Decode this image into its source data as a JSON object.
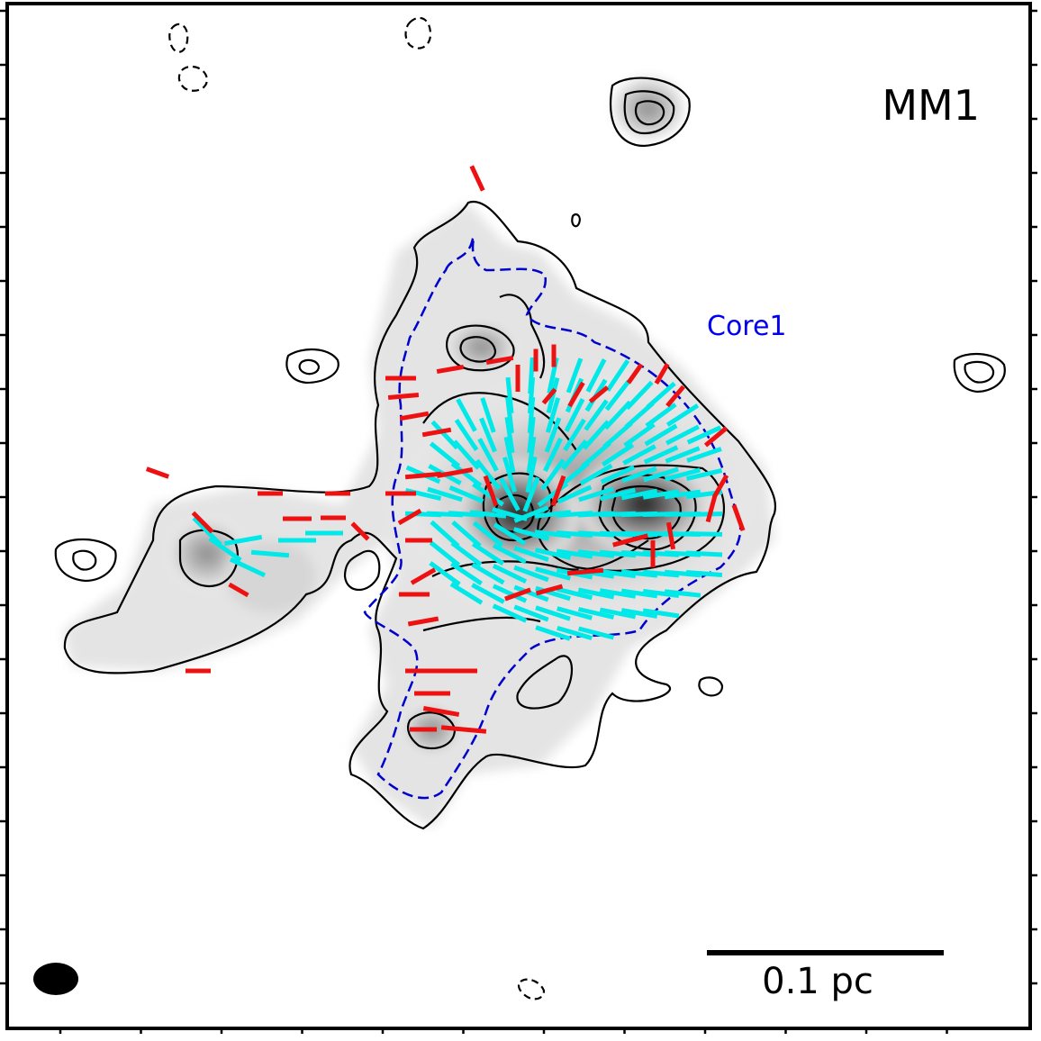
{
  "chart_data": {
    "type": "contour",
    "panel_label": "MM1",
    "region_label": "Core1",
    "scale_bar_label": "0.1 pc",
    "colors": {
      "background": "#ffffff",
      "contour": "#000000",
      "region_outline": "#0000cc",
      "vectors_primary": "#00e8e8",
      "vectors_secondary": "#ee1111",
      "beam": "#000000",
      "label": "#000000",
      "region_label": "#0000ee"
    },
    "legend": "none",
    "grid": false
  }
}
